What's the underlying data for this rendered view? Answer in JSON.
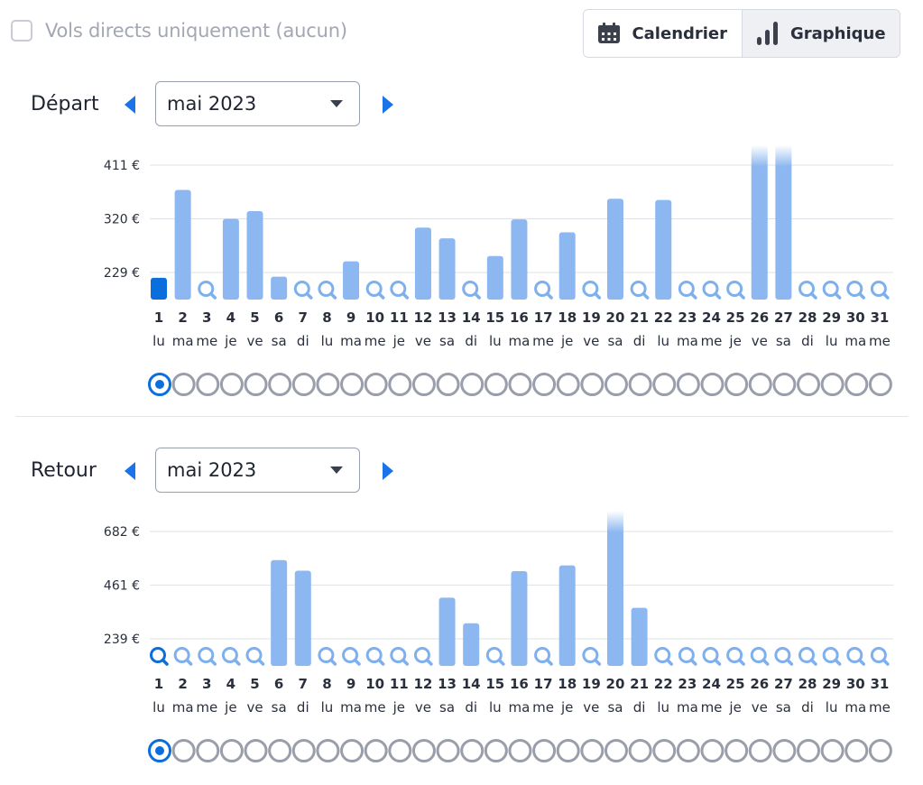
{
  "filters": {
    "direct_only_label": "Vols directs uniquement (aucun)",
    "direct_only_checked": false
  },
  "view_toggle": {
    "calendar_label": "Calendrier",
    "chart_label": "Graphique",
    "active": "chart",
    "calendar_icon": "calendar-icon",
    "chart_icon": "bar-chart-icon"
  },
  "departure": {
    "label": "Départ",
    "month": "mai 2023",
    "prev_icon": "arrow-left-icon",
    "next_icon": "arrow-right-icon"
  },
  "return": {
    "label": "Retour",
    "month": "mai 2023",
    "prev_icon": "arrow-left-icon",
    "next_icon": "arrow-right-icon"
  },
  "colors": {
    "bar": "#8db7f0",
    "bar_selected": "#0a6fdd",
    "search_icon": "#7fb0ee",
    "radio_empty": "#9a9eaa",
    "radio_selected": "#0a6fdd",
    "grid": "#dfe1e6"
  },
  "chart_data": [
    {
      "type": "bar",
      "name": "depart",
      "days": [
        "1",
        "2",
        "3",
        "4",
        "5",
        "6",
        "7",
        "8",
        "9",
        "10",
        "11",
        "12",
        "13",
        "14",
        "15",
        "16",
        "17",
        "18",
        "19",
        "20",
        "21",
        "22",
        "23",
        "24",
        "25",
        "26",
        "27",
        "28",
        "29",
        "30",
        "31"
      ],
      "weekdays": [
        "lu",
        "ma",
        "me",
        "je",
        "ve",
        "sa",
        "di",
        "lu",
        "ma",
        "me",
        "je",
        "ve",
        "sa",
        "di",
        "lu",
        "ma",
        "me",
        "je",
        "ve",
        "sa",
        "di",
        "lu",
        "ma",
        "me",
        "je",
        "ve",
        "sa",
        "di",
        "lu",
        "ma",
        "me"
      ],
      "values": [
        220,
        369,
        null,
        320,
        333,
        222,
        null,
        null,
        248,
        null,
        null,
        305,
        287,
        null,
        257,
        319,
        null,
        297,
        null,
        354,
        null,
        352,
        null,
        null,
        null,
        445,
        445,
        null,
        null,
        null,
        null
      ],
      "faded_top": [
        26,
        27
      ],
      "selected_day": 1,
      "yticks": [
        229,
        320,
        411
      ],
      "ytick_labels": [
        "229 €",
        "320 €",
        "411 €"
      ],
      "ylim": [
        150,
        445
      ]
    },
    {
      "type": "bar",
      "name": "retour",
      "days": [
        "1",
        "2",
        "3",
        "4",
        "5",
        "6",
        "7",
        "8",
        "9",
        "10",
        "11",
        "12",
        "13",
        "14",
        "15",
        "16",
        "17",
        "18",
        "19",
        "20",
        "21",
        "22",
        "23",
        "24",
        "25",
        "26",
        "27",
        "28",
        "29",
        "30",
        "31"
      ],
      "weekdays": [
        "lu",
        "ma",
        "me",
        "je",
        "ve",
        "sa",
        "di",
        "lu",
        "ma",
        "me",
        "je",
        "ve",
        "sa",
        "di",
        "lu",
        "ma",
        "me",
        "je",
        "ve",
        "sa",
        "di",
        "lu",
        "ma",
        "me",
        "je",
        "ve",
        "sa",
        "di",
        "lu",
        "ma",
        "me"
      ],
      "values": [
        null,
        null,
        null,
        null,
        null,
        564,
        520,
        null,
        null,
        null,
        null,
        null,
        409,
        303,
        null,
        518,
        null,
        542,
        null,
        795,
        367,
        null,
        null,
        null,
        null,
        null,
        null,
        null,
        null,
        null,
        null
      ],
      "faded_top": [
        20
      ],
      "selected_day": 1,
      "yticks": [
        239,
        461,
        682
      ],
      "ytick_labels": [
        "239 €",
        "461 €",
        "682 €"
      ],
      "ylim": [
        140,
        795
      ]
    }
  ]
}
